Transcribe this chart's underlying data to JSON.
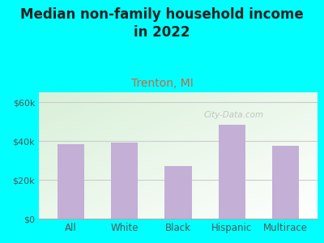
{
  "categories": [
    "All",
    "White",
    "Black",
    "Hispanic",
    "Multirace"
  ],
  "values": [
    38500,
    39000,
    27000,
    48500,
    37500
  ],
  "bar_color": "#c4afd6",
  "title": "Median non-family household income\nin 2022",
  "subtitle": "Trenton, MI",
  "subtitle_color": "#cc6644",
  "title_color": "#222222",
  "title_fontsize": 12,
  "subtitle_fontsize": 10,
  "tick_label_color": "#555555",
  "ytick_labels": [
    "$0",
    "$20k",
    "$40k",
    "$60k"
  ],
  "ytick_values": [
    0,
    20000,
    40000,
    60000
  ],
  "ylim": [
    0,
    65000
  ],
  "bg_outer": "#00ffff",
  "bg_plot_color1": "#d8f0d8",
  "bg_plot_color2": "#ffffff",
  "grid_color": "#cccccc",
  "watermark": "City-Data.com",
  "watermark_color": "#bbbbbb",
  "bar_width": 0.5
}
